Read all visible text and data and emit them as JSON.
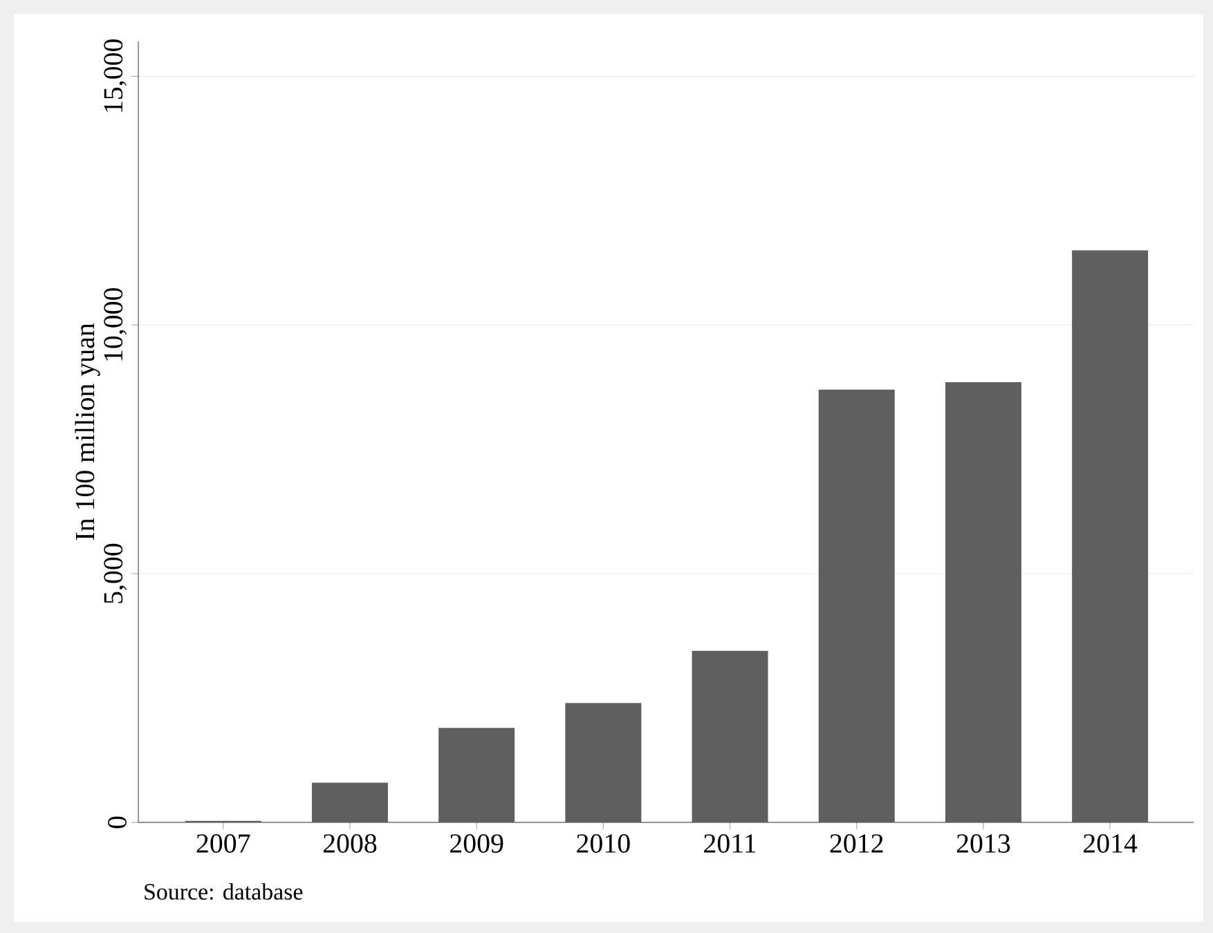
{
  "chart_data": {
    "type": "bar",
    "ylabel": "In 100 million yuan",
    "categories": [
      "2007",
      "2008",
      "2009",
      "2010",
      "2011",
      "2012",
      "2013",
      "2014"
    ],
    "values": [
      30,
      800,
      1900,
      2400,
      3450,
      8700,
      8850,
      11500
    ],
    "color": "#5f5f5f",
    "ylim": [
      0,
      15700
    ],
    "yticks": [
      0,
      {
        "value": 5000,
        "label": "5,000"
      },
      {
        "value": 10000,
        "label": "10,000"
      },
      {
        "value": 15000,
        "label": "15,000"
      }
    ],
    "grid": "y",
    "annotations": [
      "Source: database"
    ]
  }
}
